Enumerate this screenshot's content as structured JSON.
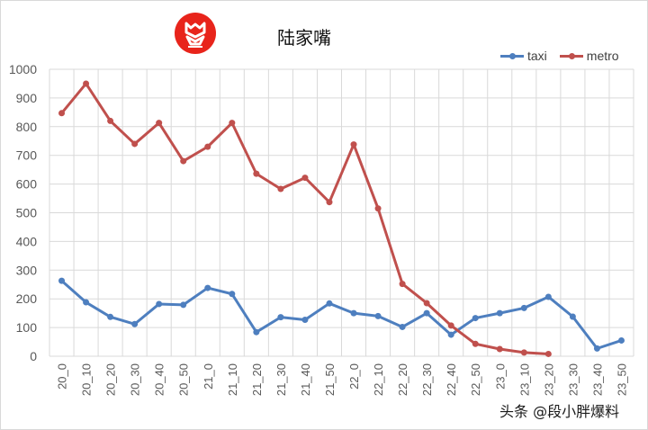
{
  "header": {
    "title": "陆家嘴",
    "logo_icon": "red-circle-logo-icon"
  },
  "legend": {
    "items": [
      {
        "label": "taxi",
        "color": "#4e7fbf"
      },
      {
        "label": "metro",
        "color": "#c0504d"
      }
    ]
  },
  "watermark": "头条 @段小胖爆料",
  "colors": {
    "taxi": "#4e7fbf",
    "metro": "#c0504d",
    "grid": "#d9d9d9",
    "axis_text": "#595959",
    "logo": "#e8241b"
  },
  "chart_data": {
    "type": "line",
    "title": "陆家嘴",
    "xlabel": "",
    "ylabel": "",
    "ylim": [
      0,
      1000
    ],
    "yticks": [
      0,
      100,
      200,
      300,
      400,
      500,
      600,
      700,
      800,
      900,
      1000
    ],
    "grid": true,
    "legend_position": "top-right",
    "categories": [
      "20_0",
      "20_10",
      "20_20",
      "20_30",
      "20_40",
      "20_50",
      "21_0",
      "21_10",
      "21_20",
      "21_30",
      "21_40",
      "21_50",
      "22_0",
      "22_10",
      "22_20",
      "22_30",
      "22_40",
      "22_50",
      "23_0",
      "23_10",
      "23_20",
      "23_30",
      "23_40",
      "23_50"
    ],
    "series": [
      {
        "name": "taxi",
        "color": "#4e7fbf",
        "values": [
          263,
          188,
          137,
          112,
          182,
          179,
          238,
          217,
          84,
          136,
          127,
          184,
          150,
          140,
          102,
          150,
          75,
          133,
          150,
          168,
          207,
          138,
          27,
          55
        ]
      },
      {
        "name": "metro",
        "color": "#c0504d",
        "values": [
          847,
          950,
          820,
          740,
          813,
          680,
          730,
          813,
          636,
          583,
          622,
          537,
          738,
          515,
          252,
          185,
          107,
          43,
          25,
          13,
          8,
          null,
          null,
          null
        ]
      }
    ]
  }
}
